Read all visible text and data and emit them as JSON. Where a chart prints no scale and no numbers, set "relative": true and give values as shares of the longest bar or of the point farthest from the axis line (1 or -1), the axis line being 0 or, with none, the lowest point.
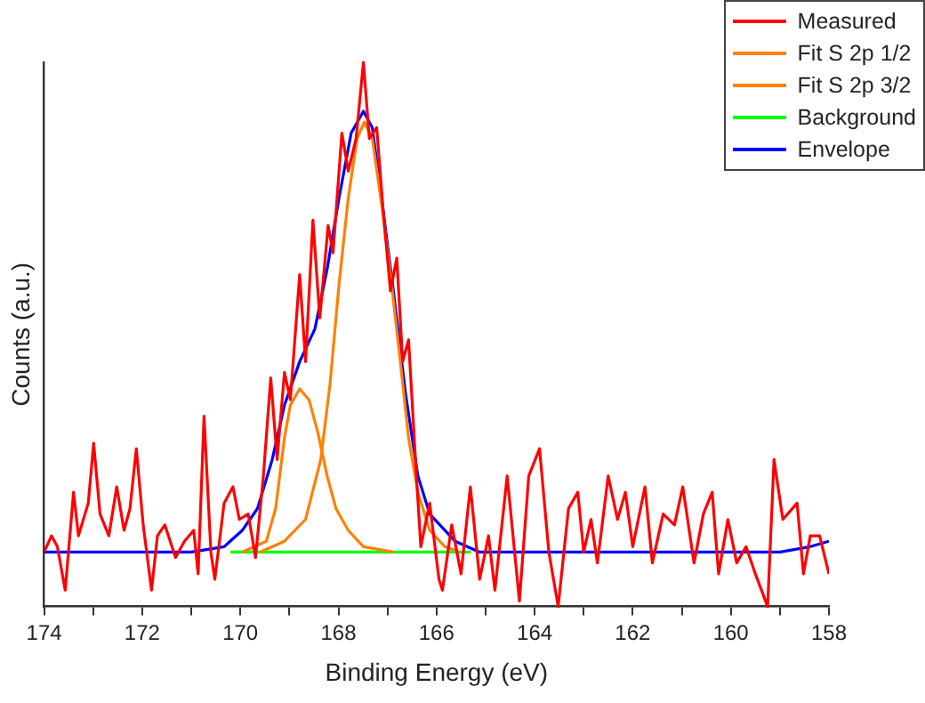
{
  "chart_data": {
    "type": "line",
    "xlabel": "Binding Energy (eV)",
    "ylabel": "Counts (a.u.)",
    "relative": true,
    "xlim": [
      174,
      158
    ],
    "xticks": [
      174,
      {
        "value": 173,
        "label": null
      },
      172,
      {
        "value": 171,
        "label": null
      },
      170,
      {
        "value": 169,
        "label": null
      },
      168,
      {
        "value": 167,
        "label": null
      },
      166,
      {
        "value": 165,
        "label": null
      },
      164,
      {
        "value": 163,
        "label": null
      },
      162,
      {
        "value": 161,
        "label": null
      },
      160,
      {
        "value": 159,
        "label": null
      },
      158
    ],
    "grid": false,
    "legend": "top right",
    "marker": "none",
    "line_style": "solid",
    "series": [
      {
        "name": "Measured",
        "color": "#ff0000",
        "x": [
          174.0,
          173.85,
          173.73,
          173.57,
          173.4,
          173.3,
          173.1,
          172.99,
          172.86,
          172.68,
          172.52,
          172.37,
          172.25,
          172.12,
          171.98,
          171.81,
          171.69,
          171.54,
          171.32,
          171.14,
          170.95,
          170.86,
          170.74,
          170.6,
          170.52,
          170.33,
          170.15,
          170.02,
          169.84,
          169.69,
          169.53,
          169.38,
          169.25,
          169.1,
          168.98,
          168.79,
          168.67,
          168.52,
          168.38,
          168.21,
          168.11,
          167.93,
          167.8,
          167.64,
          167.49,
          167.37,
          167.22,
          167.09,
          166.94,
          166.81,
          166.69,
          166.57,
          166.41,
          166.32,
          166.14,
          165.95,
          165.88,
          165.69,
          165.5,
          165.31,
          165.12,
          164.94,
          164.81,
          164.56,
          164.31,
          164.12,
          163.9,
          163.71,
          163.52,
          163.31,
          163.12,
          163.0,
          162.85,
          162.72,
          162.5,
          162.31,
          162.15,
          162.0,
          161.75,
          161.6,
          161.38,
          161.15,
          160.98,
          160.75,
          160.56,
          160.38,
          160.25,
          160.06,
          159.88,
          159.69,
          159.5,
          159.25,
          159.12,
          158.94,
          158.65,
          158.52,
          158.38,
          158.19,
          158.0
        ],
        "values": [
          0.1,
          0.13,
          0.11,
          0.03,
          0.21,
          0.13,
          0.19,
          0.3,
          0.17,
          0.13,
          0.22,
          0.14,
          0.18,
          0.29,
          0.15,
          0.03,
          0.13,
          0.15,
          0.09,
          0.12,
          0.14,
          0.06,
          0.35,
          0.1,
          0.05,
          0.19,
          0.22,
          0.16,
          0.17,
          0.09,
          0.24,
          0.42,
          0.27,
          0.43,
          0.38,
          0.61,
          0.45,
          0.71,
          0.53,
          0.7,
          0.65,
          0.87,
          0.8,
          0.86,
          1.0,
          0.86,
          0.88,
          0.73,
          0.58,
          0.64,
          0.45,
          0.49,
          0.24,
          0.11,
          0.19,
          0.05,
          0.03,
          0.15,
          0.06,
          0.22,
          0.05,
          0.13,
          0.03,
          0.24,
          0.01,
          0.24,
          0.29,
          0.1,
          0.0,
          0.18,
          0.21,
          0.1,
          0.16,
          0.08,
          0.24,
          0.16,
          0.21,
          0.11,
          0.22,
          0.08,
          0.17,
          0.15,
          0.22,
          0.08,
          0.17,
          0.21,
          0.06,
          0.16,
          0.08,
          0.11,
          0.06,
          0.0,
          0.27,
          0.16,
          0.19,
          0.06,
          0.13,
          0.13,
          0.06
        ]
      },
      {
        "name": "Fit S 2p 1/2",
        "color": "#ff8000",
        "x": [
          169.96,
          169.47,
          169.28,
          169.1,
          168.98,
          168.79,
          168.6,
          168.42,
          168.23,
          168.05,
          167.8,
          167.49,
          166.88
        ],
        "values": [
          0.1,
          0.12,
          0.18,
          0.31,
          0.37,
          0.4,
          0.38,
          0.32,
          0.24,
          0.18,
          0.14,
          0.11,
          0.1
        ]
      },
      {
        "name": "Fit S 2p 3/2",
        "color": "#ff8000",
        "x": [
          169.6,
          169.1,
          168.67,
          168.36,
          168.17,
          167.99,
          167.8,
          167.62,
          167.47,
          167.31,
          167.12,
          166.94,
          166.75,
          166.57,
          166.38,
          166.14,
          165.83,
          165.52
        ],
        "values": [
          0.1,
          0.12,
          0.16,
          0.27,
          0.41,
          0.59,
          0.75,
          0.86,
          0.89,
          0.86,
          0.74,
          0.61,
          0.46,
          0.31,
          0.21,
          0.14,
          0.11,
          0.1
        ]
      },
      {
        "name": "Background",
        "color": "#00ff00",
        "x": [
          170.2,
          165.3
        ],
        "values": [
          0.1,
          0.1
        ]
      },
      {
        "name": "Envelope",
        "color": "#0000ff",
        "x": [
          174.0,
          171.0,
          170.33,
          169.96,
          169.65,
          169.35,
          169.1,
          168.79,
          168.48,
          168.23,
          167.99,
          167.74,
          167.49,
          167.31,
          167.12,
          166.88,
          166.63,
          166.38,
          166.14,
          165.62,
          165.12,
          159.0,
          158.38,
          158.0
        ],
        "values": [
          0.1,
          0.1,
          0.11,
          0.14,
          0.18,
          0.27,
          0.37,
          0.45,
          0.51,
          0.62,
          0.75,
          0.87,
          0.91,
          0.88,
          0.75,
          0.58,
          0.39,
          0.24,
          0.17,
          0.12,
          0.1,
          0.1,
          0.11,
          0.12
        ]
      }
    ]
  }
}
